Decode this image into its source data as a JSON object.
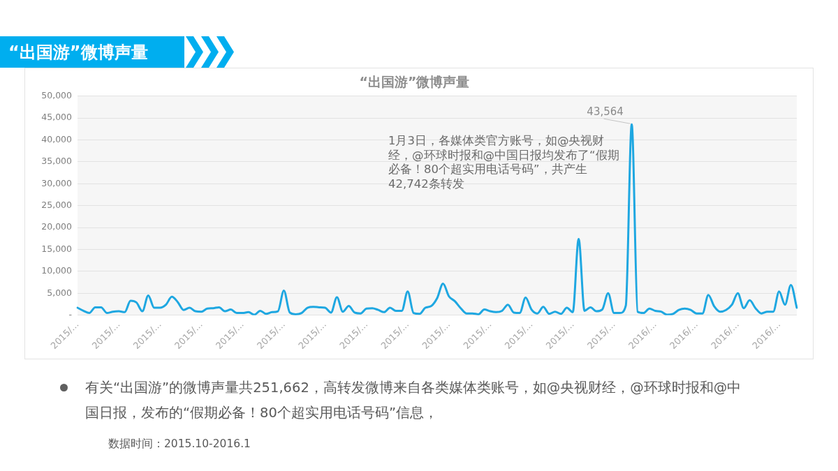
{
  "chart_data": {
    "type": "line",
    "title": "“出国游”微博声量",
    "annotations": [
      "“出国游”微博声量",
      "1月3日，各媒体类官方账号，如@央视财经，@环球时报和@中国日报均发布了“假期必备！80个超实用电话号码”，共产生42,742条转发",
      "有关“出国游”的微博声量共251,662，高转发微博来自各类媒体类账号，如@央视财经，@环球时报和@中国日报，发布的“假期必备！80个超实用电话号码”信息，",
      "数据时间：2015.10-2016.1"
    ],
    "categories": [
      "2015/...",
      null,
      null,
      null,
      null,
      null,
      null,
      "2015/...",
      null,
      null,
      null,
      null,
      null,
      null,
      "2015/...",
      null,
      null,
      null,
      null,
      null,
      null,
      "2015/...",
      null,
      null,
      null,
      null,
      null,
      null,
      "2015/...",
      null,
      null,
      null,
      null,
      null,
      null,
      "2015/...",
      null,
      null,
      null,
      null,
      null,
      null,
      "2015/...",
      null,
      null,
      null,
      null,
      null,
      null,
      "2015/...",
      null,
      null,
      null,
      null,
      null,
      null,
      "2015/...",
      null,
      null,
      null,
      null,
      null,
      null,
      "2015/...",
      null,
      null,
      null,
      null,
      null,
      null,
      "2015/...",
      null,
      null,
      null,
      null,
      null,
      null,
      "2015/...",
      null,
      null,
      null,
      null,
      null,
      null,
      "2015/...",
      null,
      null,
      null,
      null,
      null,
      null,
      "2015/...",
      null,
      null,
      null,
      null,
      null,
      null,
      "2016/...",
      null,
      null,
      null,
      null,
      null,
      null,
      "2016/...",
      null,
      null,
      null,
      null,
      null,
      null,
      "2016/...",
      null,
      null,
      null,
      null,
      null,
      null,
      "2016/...",
      null,
      null,
      null
    ],
    "values": [
      1700,
      1000,
      500,
      1800,
      1800,
      500,
      800,
      900,
      700,
      3300,
      2900,
      900,
      4500,
      1700,
      1700,
      2400,
      4200,
      3000,
      1200,
      1700,
      900,
      800,
      1500,
      1600,
      1800,
      900,
      1300,
      500,
      500,
      700,
      100,
      1000,
      300,
      700,
      900,
      5600,
      600,
      200,
      500,
      1700,
      1900,
      1800,
      1700,
      600,
      4100,
      800,
      2100,
      600,
      400,
      1500,
      1600,
      1200,
      700,
      1700,
      1000,
      1000,
      5400,
      500,
      300,
      1700,
      2100,
      3900,
      7200,
      4300,
      3200,
      1600,
      400,
      400,
      200,
      1300,
      900,
      700,
      1000,
      2400,
      600,
      500,
      4000,
      1300,
      400,
      1900,
      300,
      800,
      300,
      1700,
      700,
      17400,
      1000,
      1800,
      900,
      1300,
      5000,
      500,
      500,
      2200,
      43564,
      800,
      500,
      1500,
      1000,
      800,
      100,
      300,
      1200,
      1500,
      1200,
      400,
      400,
      4600,
      2000,
      800,
      1200,
      2400,
      5000,
      1600,
      3400,
      1600,
      400,
      800,
      800,
      5400,
      2400,
      6900,
      1700
    ],
    "value_labels": [
      null,
      null,
      null,
      null,
      null,
      null,
      null,
      null,
      null,
      null,
      null,
      null,
      null,
      null,
      null,
      null,
      null,
      null,
      null,
      null,
      null,
      null,
      null,
      null,
      null,
      null,
      null,
      null,
      null,
      null,
      null,
      null,
      null,
      null,
      null,
      null,
      null,
      null,
      null,
      null,
      null,
      null,
      null,
      null,
      null,
      null,
      null,
      null,
      null,
      null,
      null,
      null,
      null,
      null,
      null,
      null,
      null,
      null,
      null,
      null,
      null,
      null,
      null,
      null,
      null,
      null,
      null,
      null,
      null,
      null,
      null,
      null,
      null,
      null,
      null,
      null,
      null,
      null,
      null,
      null,
      null,
      null,
      null,
      null,
      null,
      null,
      null,
      null,
      null,
      null,
      null,
      null,
      null,
      null,
      "43,564",
      null,
      null,
      null,
      null,
      null,
      null,
      null,
      null,
      null,
      null,
      null,
      null,
      null,
      null,
      null,
      null,
      null,
      null,
      null,
      null,
      null,
      null,
      null,
      null,
      null,
      null,
      null,
      null
    ],
    "color": "#1ea7e1",
    "marker": "none",
    "line_style": "solid",
    "grid": "y",
    "ylim": [
      0,
      50000
    ],
    "yticks": [
      {
        "value": 0,
        "label": "-"
      },
      {
        "value": 5000,
        "label": "5,000"
      },
      {
        "value": 10000,
        "label": "10,000"
      },
      {
        "value": 15000,
        "label": "15,000"
      },
      {
        "value": 20000,
        "label": "20,000"
      },
      {
        "value": 25000,
        "label": "25,000"
      },
      {
        "value": 30000,
        "label": "30,000"
      },
      {
        "value": 35000,
        "label": "35,000"
      },
      {
        "value": 40000,
        "label": "40,000"
      },
      {
        "value": 45000,
        "label": "45,000"
      },
      {
        "value": 50000,
        "label": "50,000"
      }
    ]
  }
}
